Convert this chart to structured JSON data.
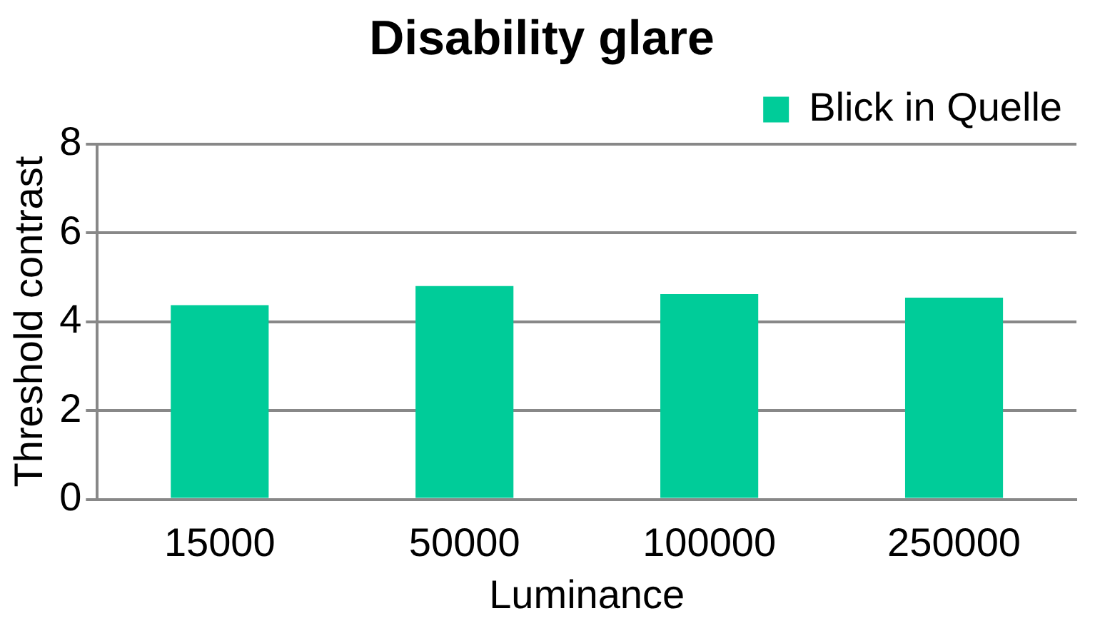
{
  "chart_data": {
    "type": "bar",
    "title": "Disability glare",
    "xlabel": "Luminance",
    "ylabel": "Threshold contrast",
    "categories": [
      "15000",
      "50000",
      "100000",
      "250000"
    ],
    "series": [
      {
        "name": "Blick in Quelle",
        "color": "#00cc99",
        "values": [
          4.37,
          4.8,
          4.62,
          4.54
        ]
      }
    ],
    "ylim": [
      0,
      8
    ],
    "yticks": [
      0,
      2,
      4,
      6,
      8
    ],
    "grid": "y",
    "legend": "top right"
  }
}
